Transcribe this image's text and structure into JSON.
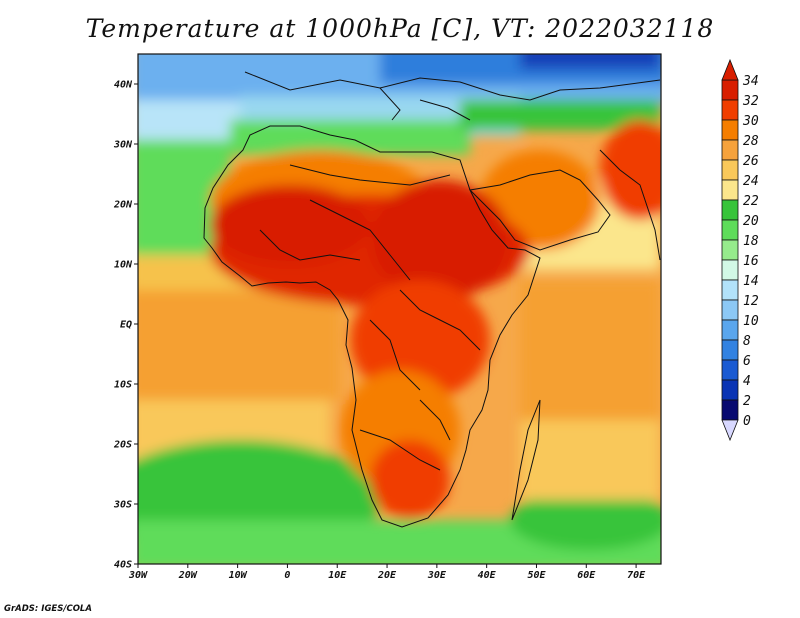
{
  "title": "Temperature at 1000hPa [C], VT: 2022032118",
  "credit": "GrADS: IGES/COLA",
  "map": {
    "lon_range": [
      -30,
      75
    ],
    "lat_range": [
      -40,
      45
    ],
    "lat_labels": [
      "40N",
      "30N",
      "20N",
      "10N",
      "EQ",
      "10S",
      "20S",
      "30S",
      "40S"
    ],
    "lon_labels": [
      "30W",
      "20W",
      "10W",
      "0",
      "10E",
      "20E",
      "30E",
      "40E",
      "50E",
      "60E",
      "70E"
    ]
  },
  "colorbar": {
    "levels": [
      "34",
      "32",
      "30",
      "28",
      "26",
      "24",
      "22",
      "20",
      "18",
      "16",
      "14",
      "12",
      "10",
      "8",
      "6",
      "4",
      "2",
      "0"
    ],
    "colors": [
      "#d81e00",
      "#f03e00",
      "#f57e00",
      "#f6a23c",
      "#f9c85a",
      "#fbe68c",
      "#37c43a",
      "#5edc5a",
      "#96eb8c",
      "#d2f8e6",
      "#b2e2fa",
      "#8cc8f5",
      "#5aa6ed",
      "#3282e1",
      "#1a5ad2",
      "#0a34b4",
      "#080a70"
    ]
  }
}
